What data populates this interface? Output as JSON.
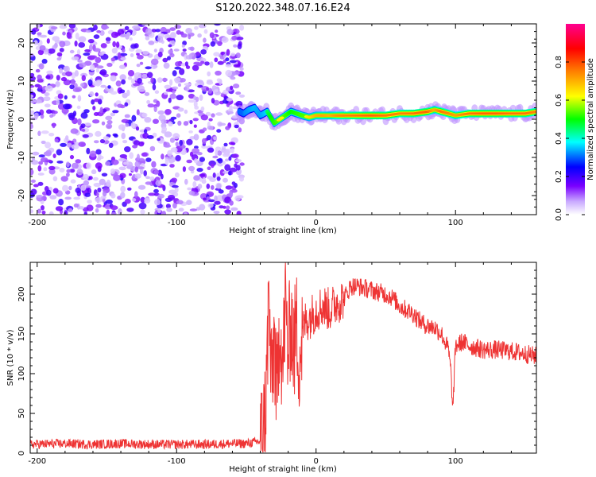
{
  "title": "S120.2022.348.07.16.E24",
  "chart_data": [
    {
      "type": "heatmap",
      "title": "S120.2022.348.07.16.E24",
      "xlabel": "Height of straight line (km)",
      "ylabel": "Frequency (Hz)",
      "xlim": [
        -205,
        158
      ],
      "ylim": [
        -25,
        25
      ],
      "xticks": [
        -200,
        -100,
        0,
        100
      ],
      "yticks": [
        -20,
        -10,
        0,
        10,
        20
      ],
      "colorbar": {
        "label": "Normalized spectral amplitude",
        "range": [
          0,
          1
        ],
        "ticks": [
          0.0,
          0.2,
          0.4,
          0.6,
          0.8
        ],
        "colormap": "rainbow (white-purple-blue-cyan-green-yellow-orange-red-pink)"
      },
      "noise_region_x": [
        -205,
        -53
      ],
      "signal_ridge": {
        "x": [
          -55,
          -52,
          -48,
          -44,
          -40,
          -35,
          -30,
          -26,
          -22,
          -18,
          -14,
          -10,
          -5,
          0,
          5,
          10,
          15,
          20,
          30,
          40,
          50,
          60,
          70,
          80,
          85,
          90,
          95,
          100,
          110,
          120,
          130,
          140,
          150,
          158
        ],
        "frequency": [
          2,
          1.5,
          2.5,
          3,
          1,
          2,
          -1,
          0,
          1,
          2,
          1.5,
          1,
          0.5,
          1,
          1,
          1,
          1,
          1,
          1,
          1,
          1,
          1.5,
          1.5,
          2,
          2.5,
          2,
          1.5,
          1,
          1.5,
          1.5,
          1.5,
          1.5,
          1.5,
          2
        ],
        "amplitude": [
          0.3,
          0.3,
          0.35,
          0.4,
          0.35,
          0.45,
          0.55,
          0.65,
          0.6,
          0.5,
          0.55,
          0.6,
          0.65,
          0.7,
          0.75,
          0.7,
          0.8,
          0.85,
          0.9,
          0.95,
          0.9,
          0.85,
          0.9,
          0.95,
          0.7,
          0.9,
          0.85,
          0.75,
          0.9,
          0.95,
          0.95,
          0.9,
          0.9,
          0.85
        ]
      }
    },
    {
      "type": "line",
      "xlabel": "Height of straight line (km)",
      "ylabel": "SNR (10 * v/v)",
      "xlim": [
        -205,
        158
      ],
      "ylim": [
        0,
        240
      ],
      "xticks": [
        -200,
        -100,
        0,
        100
      ],
      "yticks": [
        0,
        50,
        100,
        150,
        200
      ],
      "color": "#ee3333",
      "series": [
        {
          "x": [
            -205,
            -180,
            -160,
            -140,
            -120,
            -100,
            -80,
            -60,
            -50,
            -40,
            -38,
            -36,
            -35,
            -34,
            -32,
            -30,
            -28,
            -26,
            -24,
            -22,
            -20,
            -18,
            -16,
            -14,
            -12,
            -10,
            -8,
            -5,
            0,
            5,
            10,
            15,
            20,
            25,
            30,
            40,
            50,
            55,
            60,
            65,
            70,
            75,
            80,
            85,
            90,
            95,
            97,
            98,
            100,
            105,
            110,
            120,
            130,
            140,
            150,
            158
          ],
          "values": [
            11,
            12,
            11,
            12,
            11,
            11,
            11,
            12,
            12,
            15,
            22,
            60,
            120,
            200,
            80,
            150,
            60,
            180,
            100,
            190,
            120,
            175,
            130,
            160,
            120,
            145,
            165,
            170,
            180,
            185,
            180,
            190,
            195,
            210,
            210,
            205,
            200,
            195,
            185,
            180,
            175,
            165,
            160,
            158,
            150,
            130,
            95,
            50,
            135,
            140,
            135,
            130,
            130,
            128,
            125,
            122
          ]
        }
      ]
    }
  ]
}
